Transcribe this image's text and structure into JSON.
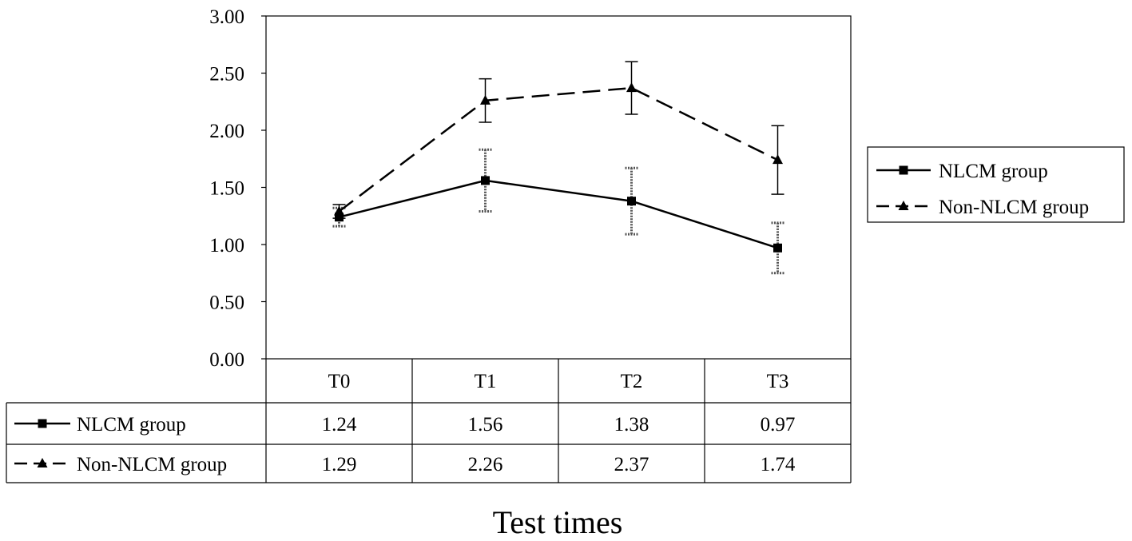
{
  "chart_data": {
    "type": "line",
    "xlabel": "Test times",
    "ylabel": "",
    "categories": [
      "T0",
      "T1",
      "T2",
      "T3"
    ],
    "y_ticks": [
      "0.00",
      "0.50",
      "1.00",
      "1.50",
      "2.00",
      "2.50",
      "3.00"
    ],
    "ylim": [
      0,
      3
    ],
    "grid": false,
    "legend_position": "right",
    "series": [
      {
        "name": "NLCM group",
        "marker": "square",
        "line_style": "solid",
        "values": [
          1.24,
          1.56,
          1.38,
          0.97
        ],
        "value_labels": [
          "1.24",
          "1.56",
          "1.38",
          "0.97"
        ],
        "error": [
          0.08,
          0.27,
          0.29,
          0.22
        ]
      },
      {
        "name": "Non-NLCM group",
        "marker": "triangle",
        "line_style": "dashed",
        "values": [
          1.29,
          2.26,
          2.37,
          1.74
        ],
        "value_labels": [
          "1.29",
          "2.26",
          "2.37",
          "1.74"
        ],
        "error": [
          0.06,
          0.19,
          0.23,
          0.3
        ]
      }
    ],
    "data_table": true
  }
}
